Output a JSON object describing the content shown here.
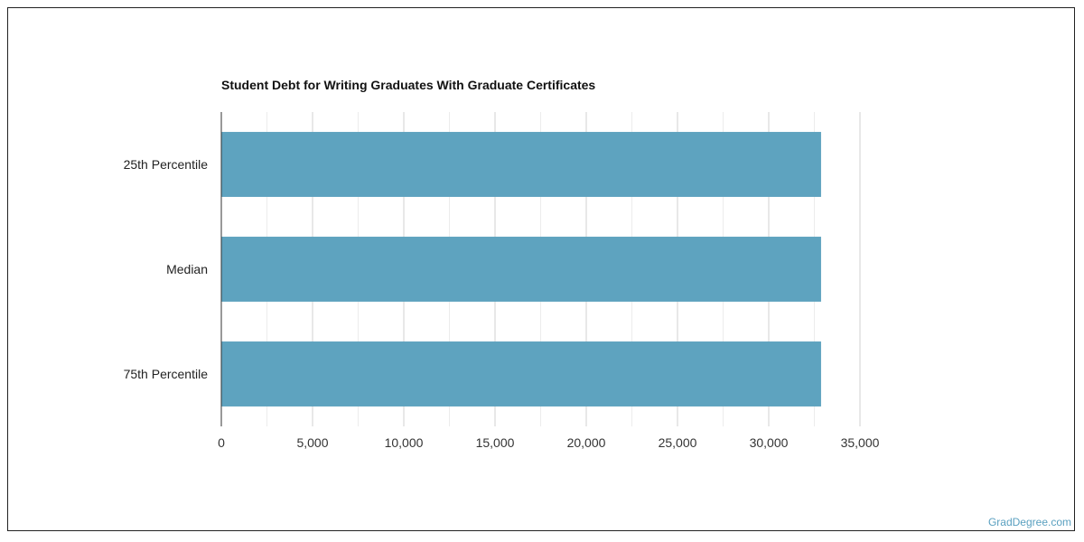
{
  "chart_data": {
    "type": "bar",
    "orientation": "horizontal",
    "title": "Student Debt for Writing Graduates With Graduate Certificates",
    "categories": [
      "25th Percentile",
      "Median",
      "75th Percentile"
    ],
    "values": [
      32868,
      32868,
      32868
    ],
    "xlim": [
      0,
      35000
    ],
    "xticks": [
      "0",
      "5,000",
      "10,000",
      "15,000",
      "20,000",
      "25,000",
      "30,000",
      "35,000"
    ],
    "xtick_values": [
      0,
      5000,
      10000,
      15000,
      20000,
      25000,
      30000,
      35000
    ],
    "grid": true,
    "bar_color": "#5ea3bf",
    "xlabel": "",
    "ylabel": ""
  },
  "watermark": "GradDegree.com"
}
